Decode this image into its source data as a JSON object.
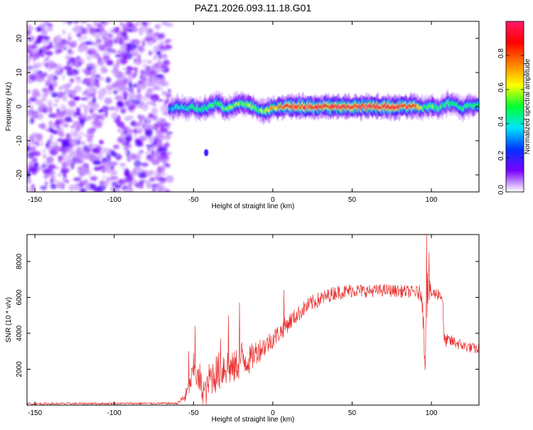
{
  "title": "PAZ1.2026.093.11.18.G01",
  "chart_data": [
    {
      "type": "heatmap",
      "name": "spectrogram",
      "xlabel": "Height of straight line (km)",
      "ylabel": "Frequency (Hz)",
      "xlim": [
        -155,
        130
      ],
      "ylim": [
        -25,
        25
      ],
      "xticks": [
        -150,
        -100,
        -50,
        0,
        50,
        100
      ],
      "yticks": [
        -20,
        -10,
        0,
        10,
        20
      ],
      "colorbar": {
        "label": "Normalized spectral amplitude",
        "range": [
          0,
          1
        ],
        "ticks": [
          "0.0",
          "0.2",
          "0.4",
          "0.6",
          "0.8"
        ],
        "stops": [
          "#ffffff",
          "#7a00ff",
          "#0033ff",
          "#00e5ff",
          "#00ff33",
          "#ffff00",
          "#ff8000",
          "#ff0000",
          "#ff1a66"
        ]
      },
      "noise_region_x": [
        -155,
        -65
      ],
      "ridge": {
        "x": [
          -65,
          -60,
          -55,
          -50,
          -45,
          -40,
          -35,
          -30,
          -25,
          -20,
          -15,
          -10,
          -5,
          0,
          5,
          10,
          20,
          30,
          40,
          50,
          60,
          70,
          80,
          90,
          95,
          100,
          105,
          110,
          115,
          120,
          125,
          130
        ],
        "freq": [
          -1,
          0,
          -0.5,
          0,
          -1,
          0,
          1,
          -0.5,
          0,
          1,
          0.5,
          -1,
          -1.5,
          -0.5,
          0,
          0,
          0,
          0,
          0,
          0,
          0,
          0,
          0,
          0,
          -0.5,
          0.5,
          -0.5,
          1,
          0.5,
          -0.5,
          0.5,
          0
        ],
        "amplitude": [
          0.3,
          0.45,
          0.4,
          0.5,
          0.45,
          0.5,
          0.55,
          0.5,
          0.6,
          0.55,
          0.6,
          0.55,
          0.6,
          0.7,
          0.8,
          0.9,
          0.95,
          0.95,
          0.95,
          0.95,
          0.95,
          0.95,
          0.9,
          0.85,
          0.5,
          0.55,
          0.5,
          0.5,
          0.45,
          0.5,
          0.5,
          0.45
        ]
      },
      "blob": {
        "x": -42,
        "freq": -13.5,
        "amplitude": 0.2
      }
    },
    {
      "type": "line",
      "name": "snr",
      "xlabel": "Height of straight line (km)",
      "ylabel": "SNR (10 * v/v)",
      "xlim": [
        -155,
        130
      ],
      "ylim": [
        0,
        9500
      ],
      "xticks": [
        -150,
        -100,
        -50,
        0,
        50,
        100
      ],
      "yticks": [
        2000,
        4000,
        6000,
        8000
      ],
      "color": "#e8302f",
      "envelope": {
        "x": [
          -155,
          -60,
          -55,
          -52,
          -50,
          -47,
          -45,
          -42,
          -40,
          -35,
          -30,
          -25,
          -20,
          -15,
          -10,
          -5,
          0,
          5,
          10,
          15,
          20,
          25,
          30,
          35,
          40,
          45,
          50,
          60,
          70,
          80,
          90,
          94,
          96,
          97,
          98,
          100,
          105,
          107,
          108,
          110,
          115,
          120,
          125,
          130
        ],
        "mean": [
          80,
          100,
          500,
          1200,
          2000,
          1400,
          1000,
          700,
          1500,
          1800,
          2200,
          2000,
          2600,
          2500,
          3000,
          3300,
          3700,
          4100,
          4600,
          5000,
          5400,
          5700,
          5900,
          6100,
          6300,
          6300,
          6400,
          6350,
          6400,
          6350,
          6300,
          6200,
          2500,
          6800,
          6400,
          6200,
          6200,
          6000,
          3600,
          3600,
          3500,
          3300,
          3200,
          3100
        ],
        "noise": [
          60,
          60,
          400,
          500,
          900,
          700,
          900,
          700,
          1000,
          1100,
          1200,
          900,
          1100,
          800,
          700,
          600,
          550,
          500,
          500,
          450,
          450,
          450,
          450,
          400,
          400,
          400,
          400,
          350,
          350,
          350,
          350,
          500,
          1000,
          2200,
          900,
          350,
          350,
          400,
          400,
          350,
          350,
          300,
          300,
          300
        ]
      },
      "spikes": [
        {
          "x": -53,
          "value": 3000
        },
        {
          "x": -49,
          "value": 4400
        },
        {
          "x": -46,
          "value": 2300
        },
        {
          "x": -33,
          "value": 3700
        },
        {
          "x": -28,
          "value": 5000
        },
        {
          "x": -21,
          "value": 5700
        },
        {
          "x": 7,
          "value": 6400
        },
        {
          "x": 97,
          "value": 9500
        },
        {
          "x": 98.5,
          "value": 8500
        }
      ]
    }
  ]
}
